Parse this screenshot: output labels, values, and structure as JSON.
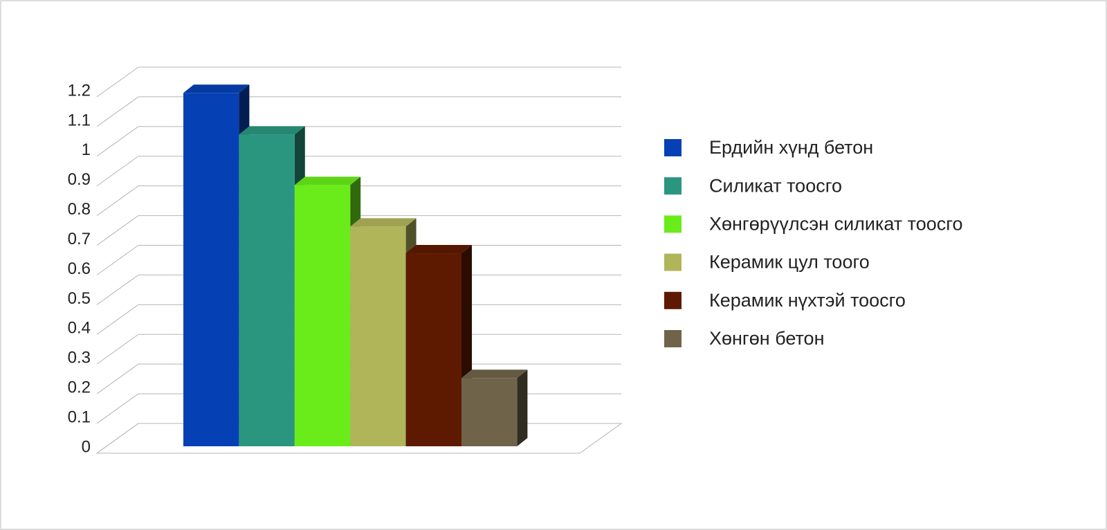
{
  "chart_data": {
    "type": "bar3d",
    "categories": [
      null
    ],
    "series": [
      {
        "name": "Ердийн хүнд бетон",
        "color": "#0540b4",
        "values": [
          1.19
        ]
      },
      {
        "name": "Силикат тоосго",
        "color": "#2a9680",
        "values": [
          1.05
        ]
      },
      {
        "name": "Хөнгөрүүлсэн силикат тоосго",
        "color": "#6aec1a",
        "values": [
          0.88
        ]
      },
      {
        "name": "Керамик цул тоого",
        "color": "#b1b55a",
        "values": [
          0.74
        ]
      },
      {
        "name": "Керамик нүхтэй тоосго",
        "color": "#5e1a00",
        "values": [
          0.65
        ]
      },
      {
        "name": "Хөнгөн бетон",
        "color": "#6f644a",
        "values": [
          0.23
        ]
      }
    ],
    "ylim": [
      0,
      1.2
    ],
    "yticks": [
      0,
      0.1,
      0.2,
      0.3,
      0.4,
      0.5,
      0.6,
      0.7,
      0.8,
      0.9,
      1,
      1.1,
      1.2
    ],
    "grid": true,
    "legend": "right"
  }
}
